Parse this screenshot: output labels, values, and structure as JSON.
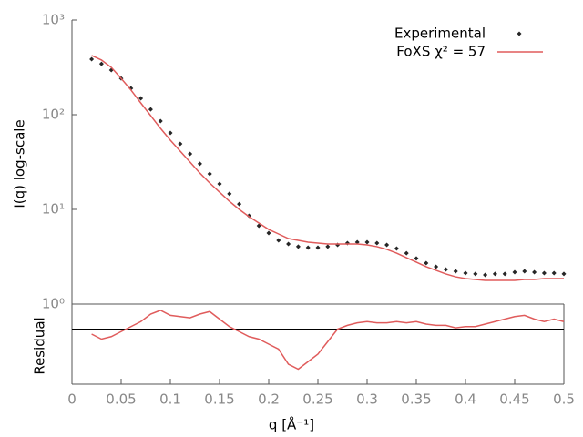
{
  "chart_data": [
    {
      "type": "line",
      "ylabel": "I(q) log-scale",
      "log_y": true,
      "x": [
        0.02,
        0.03,
        0.04,
        0.05,
        0.06,
        0.07,
        0.08,
        0.09,
        0.1,
        0.11,
        0.12,
        0.13,
        0.14,
        0.15,
        0.16,
        0.17,
        0.18,
        0.19,
        0.2,
        0.21,
        0.22,
        0.23,
        0.24,
        0.25,
        0.26,
        0.27,
        0.28,
        0.29,
        0.3,
        0.31,
        0.32,
        0.33,
        0.34,
        0.35,
        0.36,
        0.37,
        0.38,
        0.39,
        0.4,
        0.41,
        0.42,
        0.43,
        0.44,
        0.45,
        0.46,
        0.47,
        0.48,
        0.49,
        0.5
      ],
      "xlim": [
        0,
        0.5
      ],
      "ylim": [
        1,
        1000
      ],
      "yticks": [
        {
          "value": 1,
          "label": "10⁰"
        },
        {
          "value": 10,
          "label": "10¹"
        },
        {
          "value": 100,
          "label": "10²"
        },
        {
          "value": 1000,
          "label": "10³"
        }
      ],
      "legend": "upper right",
      "series": [
        {
          "name": "Experimental",
          "color": "#262626",
          "style": "points",
          "values": [
            386,
            345,
            296,
            242,
            190,
            149,
            114,
            85.7,
            64.2,
            49.2,
            38.6,
            30.3,
            23.7,
            18.6,
            14.6,
            11.4,
            8.57,
            6.71,
            5.62,
            4.71,
            4.31,
            4.04,
            3.95,
            3.95,
            4.04,
            4.22,
            4.41,
            4.51,
            4.51,
            4.41,
            4.22,
            3.86,
            3.45,
            3.03,
            2.71,
            2.48,
            2.32,
            2.22,
            2.12,
            2.08,
            2.03,
            2.08,
            2.08,
            2.17,
            2.22,
            2.17,
            2.12,
            2.12,
            2.08
          ]
        },
        {
          "name": "FoXS χ² = 57",
          "color": "#e05c5c",
          "style": "line",
          "values": [
            422,
            378,
            316,
            242,
            182,
            133,
            97.8,
            71.7,
            53.8,
            41.2,
            31.6,
            24.2,
            19.0,
            15.2,
            12.2,
            10.0,
            8.38,
            7.18,
            6.14,
            5.5,
            4.92,
            4.71,
            4.51,
            4.41,
            4.31,
            4.31,
            4.31,
            4.31,
            4.22,
            4.04,
            3.78,
            3.45,
            3.09,
            2.77,
            2.48,
            2.27,
            2.08,
            1.94,
            1.86,
            1.82,
            1.78,
            1.78,
            1.78,
            1.78,
            1.82,
            1.82,
            1.86,
            1.86,
            1.86
          ]
        }
      ]
    },
    {
      "type": "line",
      "ylabel": "Residual",
      "xlabel": "q [Å⁻¹]",
      "x": [
        0.02,
        0.03,
        0.04,
        0.05,
        0.06,
        0.07,
        0.08,
        0.09,
        0.1,
        0.11,
        0.12,
        0.13,
        0.14,
        0.15,
        0.16,
        0.17,
        0.18,
        0.19,
        0.2,
        0.21,
        0.22,
        0.23,
        0.24,
        0.25,
        0.26,
        0.27,
        0.28,
        0.29,
        0.3,
        0.31,
        0.32,
        0.33,
        0.34,
        0.35,
        0.36,
        0.37,
        0.38,
        0.39,
        0.4,
        0.41,
        0.42,
        0.43,
        0.44,
        0.45,
        0.46,
        0.47,
        0.48,
        0.49,
        0.5
      ],
      "xlim": [
        0,
        0.5
      ],
      "xticks": [
        0,
        0.05,
        0.1,
        0.15,
        0.2,
        0.25,
        0.3,
        0.35,
        0.4,
        0.45,
        0.5
      ],
      "ylim": [
        -2.2,
        1
      ],
      "hline": 0,
      "series": [
        {
          "color": "#e05c5c",
          "values": [
            -0.2,
            -0.4,
            -0.3,
            -0.1,
            0.1,
            0.3,
            0.6,
            0.75,
            0.55,
            0.5,
            0.45,
            0.6,
            0.7,
            0.4,
            0.1,
            -0.1,
            -0.3,
            -0.4,
            -0.6,
            -0.8,
            -1.4,
            -1.6,
            -1.3,
            -1.0,
            -0.5,
            0.0,
            0.15,
            0.25,
            0.3,
            0.25,
            0.25,
            0.3,
            0.25,
            0.3,
            0.2,
            0.15,
            0.15,
            0.05,
            0.1,
            0.1,
            0.2,
            0.3,
            0.4,
            0.5,
            0.55,
            0.4,
            0.3,
            0.4,
            0.3
          ]
        }
      ]
    }
  ]
}
